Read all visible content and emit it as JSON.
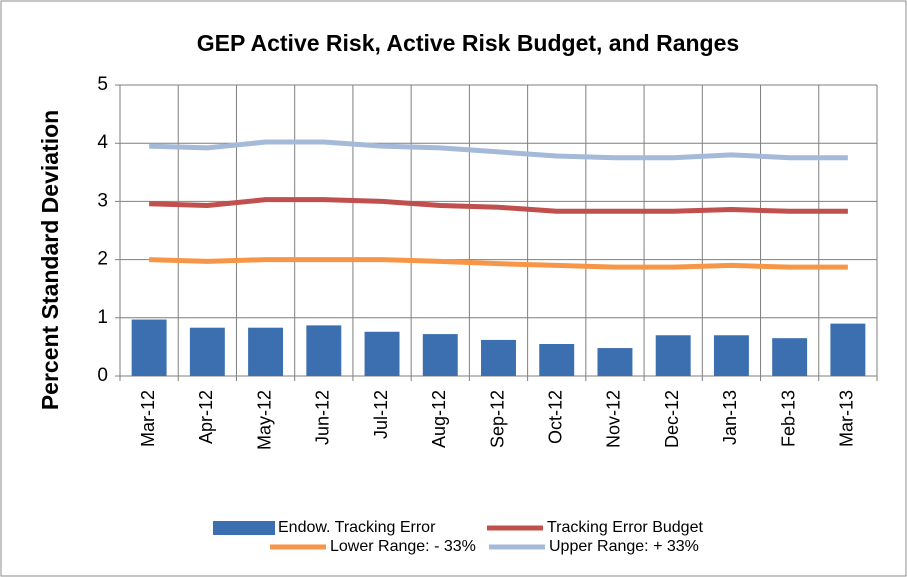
{
  "chart_data": {
    "type": "bar",
    "title": "GEP Active Risk, Active Risk Budget, and Ranges",
    "y_label": "Percent Standard Deviation",
    "categories": [
      "Mar-12",
      "Apr-12",
      "May-12",
      "Jun-12",
      "Jul-12",
      "Aug-12",
      "Sep-12",
      "Oct-12",
      "Nov-12",
      "Dec-12",
      "Jan-13",
      "Feb-13",
      "Mar-13"
    ],
    "series": [
      {
        "name": "Endow. Tracking Error",
        "type": "bar",
        "color": "#3c6faf",
        "values": [
          0.97,
          0.83,
          0.83,
          0.87,
          0.76,
          0.72,
          0.62,
          0.55,
          0.48,
          0.7,
          0.7,
          0.65,
          0.9
        ]
      },
      {
        "name": "Tracking Error Budget",
        "type": "line",
        "color": "#c0504d",
        "values": [
          2.96,
          2.93,
          3.03,
          3.03,
          3.0,
          2.93,
          2.9,
          2.83,
          2.83,
          2.83,
          2.86,
          2.83,
          2.83
        ]
      },
      {
        "name": "Lower Range: - 33%",
        "type": "line",
        "color": "#f79646",
        "values": [
          2.0,
          1.97,
          2.0,
          2.0,
          2.0,
          1.97,
          1.93,
          1.9,
          1.87,
          1.87,
          1.9,
          1.87,
          1.87
        ]
      },
      {
        "name": "Upper Range: + 33%",
        "type": "line",
        "color": "#a5b9d9",
        "values": [
          3.95,
          3.92,
          4.02,
          4.02,
          3.95,
          3.92,
          3.85,
          3.78,
          3.75,
          3.75,
          3.8,
          3.75,
          3.75
        ]
      }
    ],
    "ylim": [
      0,
      5
    ],
    "yticks": [
      0,
      1,
      2,
      3,
      4,
      5
    ],
    "grid": true
  }
}
